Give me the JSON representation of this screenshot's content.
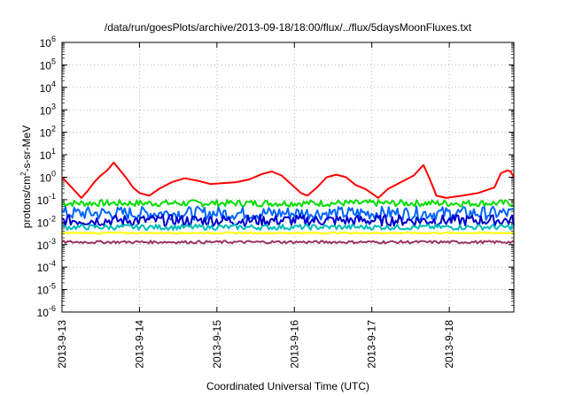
{
  "chart_data": {
    "type": "line",
    "title": "/data/run/goesPlots/archive/2013-09-18/18:00/flux/../flux/5daysMoonFluxes.txt",
    "xlabel": "Coordinated Universal Time (UTC)",
    "ylabel": "protons/cm2-s-sr-MeV",
    "ylabel_parts": {
      "pre": "protons/cm",
      "sup": "2",
      "post": "-s-sr-MeV"
    },
    "yscale": "log",
    "ylim": [
      1e-06,
      1000000.0
    ],
    "xlim": [
      "2013-09-13",
      "2013-09-18 20:00"
    ],
    "grid": true,
    "x_ticks": [
      "2013-9-13",
      "2013-9-14",
      "2013-9-15",
      "2013-9-16",
      "2013-9-17",
      "2013-9-18"
    ],
    "y_ticks": [
      {
        "base": "10",
        "exp": "-6"
      },
      {
        "base": "10",
        "exp": "-5"
      },
      {
        "base": "10",
        "exp": "-4"
      },
      {
        "base": "10",
        "exp": "-3"
      },
      {
        "base": "10",
        "exp": "-2"
      },
      {
        "base": "10",
        "exp": "-1"
      },
      {
        "base": "10",
        "exp": "0"
      },
      {
        "base": "10",
        "exp": "1"
      },
      {
        "base": "10",
        "exp": "2"
      },
      {
        "base": "10",
        "exp": "3"
      },
      {
        "base": "10",
        "exp": "4"
      },
      {
        "base": "10",
        "exp": "5"
      },
      {
        "base": "10",
        "exp": "6"
      }
    ],
    "series": [
      {
        "color": "#ff0000",
        "noise": 0.0,
        "points": [
          [
            "2013-09-13 00:00",
            1.0
          ],
          [
            "2013-09-13 03:00",
            0.35
          ],
          [
            "2013-09-13 06:00",
            0.12
          ],
          [
            "2013-09-13 08:00",
            0.25
          ],
          [
            "2013-09-13 10:00",
            0.6
          ],
          [
            "2013-09-13 12:00",
            1.2
          ],
          [
            "2013-09-13 14:00",
            2.0
          ],
          [
            "2013-09-13 16:00",
            4.5
          ],
          [
            "2013-09-13 18:00",
            2.0
          ],
          [
            "2013-09-13 20:00",
            0.9
          ],
          [
            "2013-09-13 22:00",
            0.35
          ],
          [
            "2013-09-14 00:00",
            0.2
          ],
          [
            "2013-09-14 03:00",
            0.15
          ],
          [
            "2013-09-14 06:00",
            0.3
          ],
          [
            "2013-09-14 10:00",
            0.6
          ],
          [
            "2013-09-14 14:00",
            0.9
          ],
          [
            "2013-09-14 18:00",
            0.7
          ],
          [
            "2013-09-14 22:00",
            0.5
          ],
          [
            "2013-09-15 02:00",
            0.55
          ],
          [
            "2013-09-15 06:00",
            0.6
          ],
          [
            "2013-09-15 10:00",
            0.8
          ],
          [
            "2013-09-15 14:00",
            1.4
          ],
          [
            "2013-09-15 17:00",
            1.8
          ],
          [
            "2013-09-15 20:00",
            1.2
          ],
          [
            "2013-09-15 23:00",
            0.5
          ],
          [
            "2013-09-16 02:00",
            0.2
          ],
          [
            "2013-09-16 04:00",
            0.15
          ],
          [
            "2013-09-16 07:00",
            0.35
          ],
          [
            "2013-09-16 10:00",
            1.0
          ],
          [
            "2013-09-16 13:00",
            1.3
          ],
          [
            "2013-09-16 16:00",
            1.0
          ],
          [
            "2013-09-16 19:00",
            0.45
          ],
          [
            "2013-09-16 22:00",
            0.3
          ],
          [
            "2013-09-17 02:00",
            0.12
          ],
          [
            "2013-09-17 05:00",
            0.3
          ],
          [
            "2013-09-17 09:00",
            0.6
          ],
          [
            "2013-09-17 13:00",
            1.2
          ],
          [
            "2013-09-17 15:00",
            2.5
          ],
          [
            "2013-09-17 16:00",
            3.5
          ],
          [
            "2013-09-17 18:00",
            0.8
          ],
          [
            "2013-09-17 20:00",
            0.15
          ],
          [
            "2013-09-17 23:00",
            0.12
          ],
          [
            "2013-09-18 04:00",
            0.15
          ],
          [
            "2013-09-18 09:00",
            0.2
          ],
          [
            "2013-09-18 14:00",
            0.35
          ],
          [
            "2013-09-18 16:00",
            1.5
          ],
          [
            "2013-09-18 18:00",
            2.0
          ],
          [
            "2013-09-18 19:00",
            1.8
          ],
          [
            "2013-09-18 20:00",
            1.0
          ]
        ]
      },
      {
        "color": "#00dd00",
        "noise": 0.15,
        "points": [
          [
            "2013-09-13 00:00",
            0.07
          ],
          [
            "2013-09-18 20:00",
            0.07
          ]
        ]
      },
      {
        "color": "#0066ff",
        "noise": 0.3,
        "points": [
          [
            "2013-09-13 00:00",
            0.025
          ],
          [
            "2013-09-18 20:00",
            0.025
          ]
        ]
      },
      {
        "color": "#0000cc",
        "noise": 0.25,
        "points": [
          [
            "2013-09-13 00:00",
            0.012
          ],
          [
            "2013-09-18 20:00",
            0.012
          ]
        ]
      },
      {
        "color": "#00bbbb",
        "noise": 0.12,
        "points": [
          [
            "2013-09-13 00:00",
            0.006
          ],
          [
            "2013-09-18 20:00",
            0.006
          ]
        ]
      },
      {
        "color": "#ffff00",
        "noise": 0.03,
        "points": [
          [
            "2013-09-13 00:00",
            0.0033
          ],
          [
            "2013-09-18 20:00",
            0.0033
          ]
        ]
      },
      {
        "color": "#993366",
        "noise": 0.06,
        "points": [
          [
            "2013-09-13 00:00",
            0.0013
          ],
          [
            "2013-09-18 20:00",
            0.0013
          ]
        ]
      }
    ]
  }
}
